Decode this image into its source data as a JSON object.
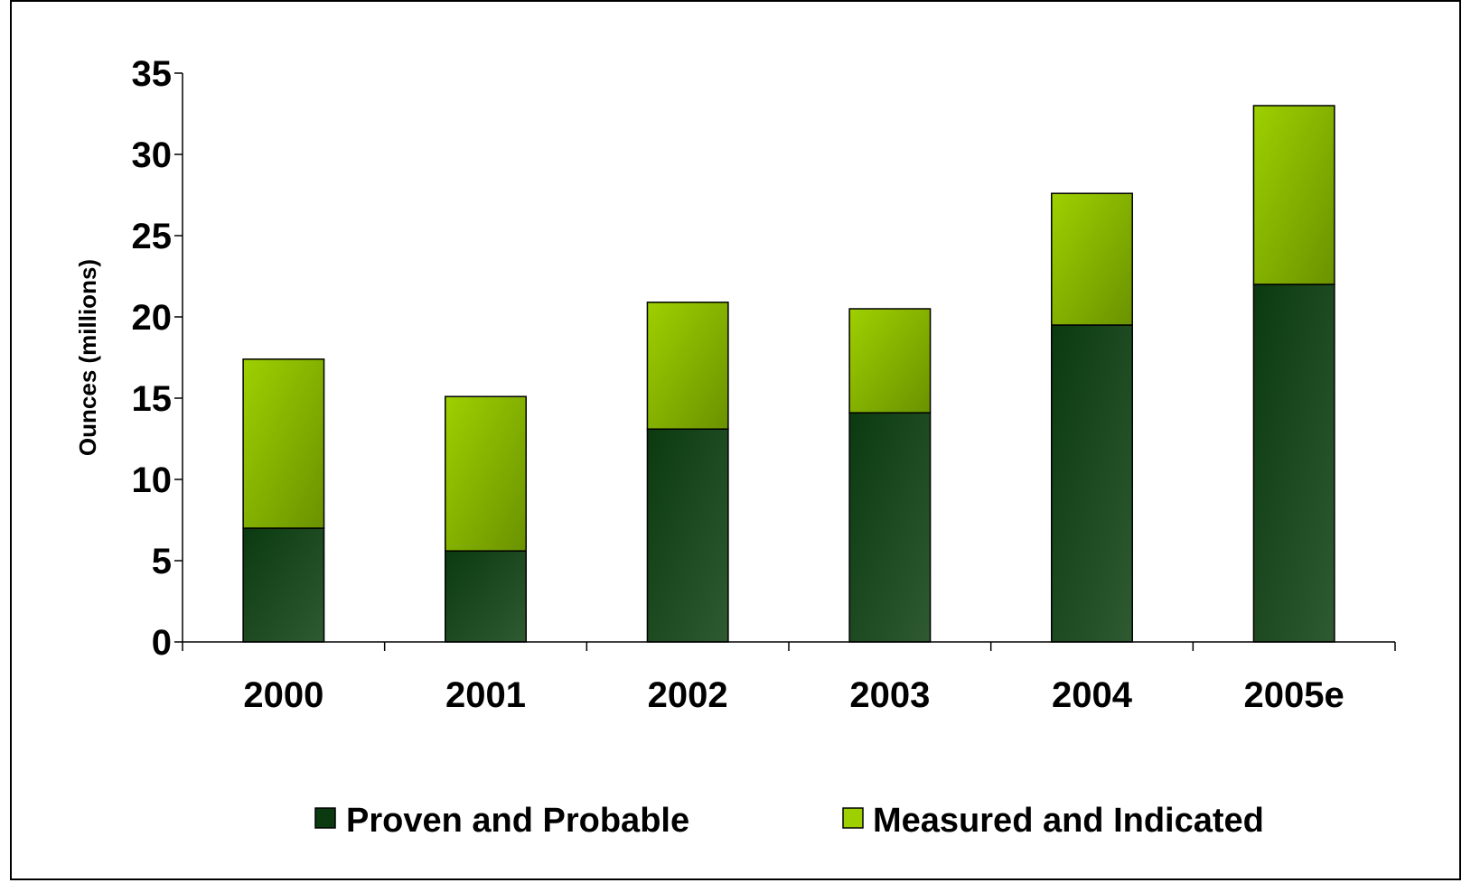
{
  "chart_data": {
    "type": "bar",
    "stacked": true,
    "title": "",
    "xlabel": "",
    "ylabel": "Ounces (millions)",
    "ylim": [
      0,
      35
    ],
    "yticks": [
      0,
      5,
      10,
      15,
      20,
      25,
      30,
      35
    ],
    "ytick_labels": [
      "0",
      "5",
      "10",
      "15",
      "20",
      "25",
      "30",
      "35"
    ],
    "categories": [
      "2000",
      "2001",
      "2002",
      "2003",
      "2004",
      "2005e"
    ],
    "series": [
      {
        "name": "Proven and Probable",
        "values": [
          7.0,
          5.6,
          13.1,
          14.1,
          19.5,
          22.0
        ],
        "color": "#1a4a1c",
        "gradient_dark": "#0b3a10",
        "gradient_light": "#2f5a32"
      },
      {
        "name": "Measured and Indicated",
        "values": [
          10.4,
          9.5,
          7.8,
          6.4,
          8.1,
          11.0
        ],
        "color": "#8fc400",
        "gradient_dark": "#6a9200",
        "gradient_light": "#9ed000"
      }
    ],
    "grid": false,
    "legend_position": "bottom"
  }
}
